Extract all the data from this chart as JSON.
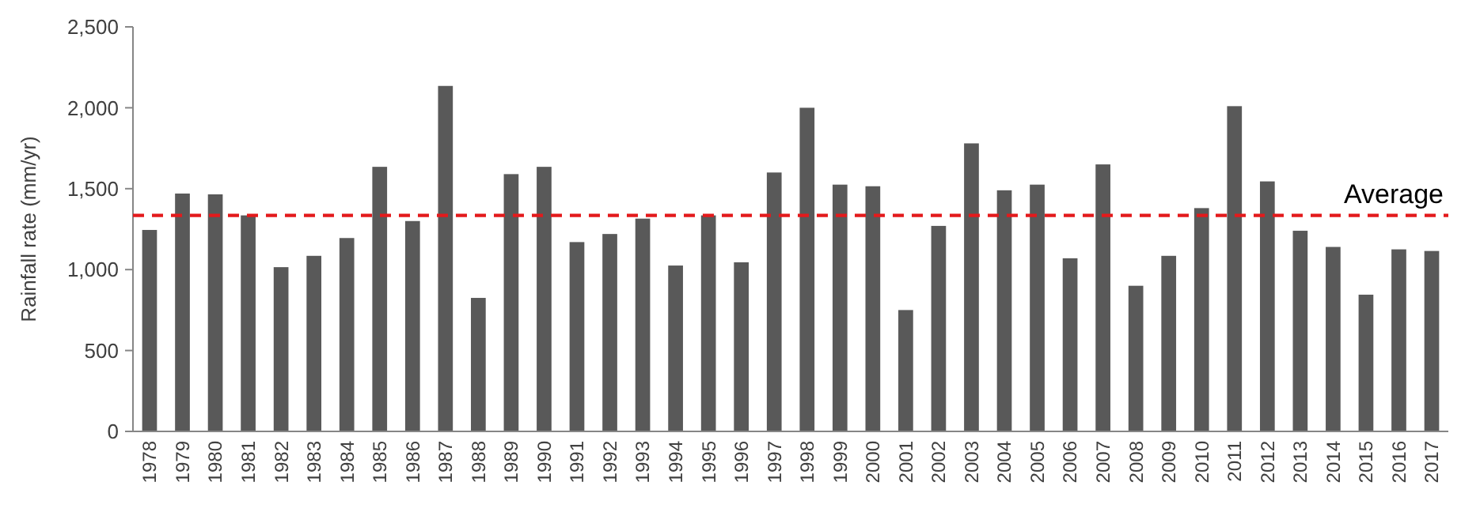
{
  "chart_data": {
    "type": "bar",
    "ylabel": "Rainfall rate (mm/yr)",
    "categories": [
      "1978",
      "1979",
      "1980",
      "1981",
      "1982",
      "1983",
      "1984",
      "1985",
      "1986",
      "1987",
      "1988",
      "1989",
      "1990",
      "1991",
      "1992",
      "1993",
      "1994",
      "1995",
      "1996",
      "1997",
      "1998",
      "1999",
      "2000",
      "2001",
      "2002",
      "2003",
      "2004",
      "2005",
      "2006",
      "2007",
      "2008",
      "2009",
      "2010",
      "2011",
      "2012",
      "2013",
      "2014",
      "2015",
      "2016",
      "2017"
    ],
    "values": [
      1245,
      1470,
      1465,
      1335,
      1015,
      1085,
      1195,
      1635,
      1300,
      2135,
      825,
      1590,
      1635,
      1170,
      1220,
      1315,
      1025,
      1335,
      1045,
      1600,
      2000,
      1525,
      1515,
      750,
      1270,
      1780,
      1490,
      1525,
      1070,
      1650,
      900,
      1085,
      1380,
      2010,
      1545,
      1240,
      1140,
      845,
      1125,
      1115
    ],
    "color": "#595959",
    "ylim": [
      0,
      2500
    ],
    "yticks": [
      {
        "value": 0,
        "label": "0"
      },
      {
        "value": 500,
        "label": "500"
      },
      {
        "value": 1000,
        "label": "1,000"
      },
      {
        "value": 1500,
        "label": "1,500"
      },
      {
        "value": 2000,
        "label": "2,000"
      },
      {
        "value": 2500,
        "label": "2,500"
      }
    ],
    "grid": false,
    "ref_lines": [
      {
        "axis": "y",
        "value": 1335,
        "label": "Average",
        "color": "#e31a1c",
        "line_style": "dashed"
      }
    ]
  }
}
